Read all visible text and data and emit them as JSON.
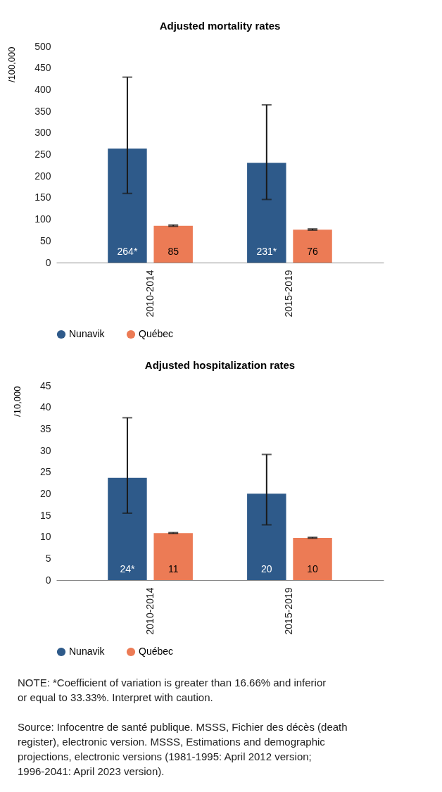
{
  "chart_data": [
    {
      "type": "bar",
      "title": "Adjusted mortality rates",
      "ylabel": "/100,000",
      "categories": [
        "2010-2014",
        "2015-2019"
      ],
      "series": [
        {
          "name": "Nunavik",
          "color": "#2e5a8a",
          "values": [
            264,
            231
          ],
          "errors": [
            [
              160,
              429
            ],
            [
              146,
              365
            ]
          ],
          "value_labels": [
            "264*",
            "231*"
          ]
        },
        {
          "name": "Québec",
          "color": "#ec7b55",
          "values": [
            85,
            76
          ],
          "errors": [
            [
              84,
              87
            ],
            [
              75,
              78
            ]
          ],
          "value_labels": [
            "85",
            "76"
          ]
        }
      ],
      "ylim": [
        0,
        500
      ],
      "yticks": [
        0,
        50,
        100,
        150,
        200,
        250,
        300,
        350,
        400,
        450,
        500
      ],
      "legend": "bottom",
      "grid": false
    },
    {
      "type": "bar",
      "title": "Adjusted hospitalization rates",
      "ylabel": "/10,000",
      "categories": [
        "2010-2014",
        "2015-2019"
      ],
      "series": [
        {
          "name": "Nunavik",
          "color": "#2e5a8a",
          "values": [
            23.7,
            20
          ],
          "errors": [
            [
              15.5,
              37.6
            ],
            [
              12.8,
              29.1
            ]
          ],
          "value_labels": [
            "24*",
            "20"
          ]
        },
        {
          "name": "Québec",
          "color": "#ec7b55",
          "values": [
            10.9,
            9.8
          ],
          "errors": [
            [
              10.8,
              11.0
            ],
            [
              9.7,
              9.9
            ]
          ],
          "value_labels": [
            "11",
            "10"
          ]
        }
      ],
      "ylim": [
        0,
        45
      ],
      "yticks": [
        0,
        5,
        10,
        15,
        20,
        25,
        30,
        35,
        40,
        45
      ],
      "legend": "bottom",
      "grid": false,
      "annotations": [
        "NOTE: *Coefficient of variation is greater than 16.66% and inferior or equal to 33.33%. Interpret with caution.",
        "Source: Infocentre de santé publique. MSSS, Fichier des décès (death register), electronic version. MSSS, Estimations and demographic projections, electronic versions (1981-1995: April 2012 version; 1996-2041: April 2023 version)."
      ]
    }
  ]
}
